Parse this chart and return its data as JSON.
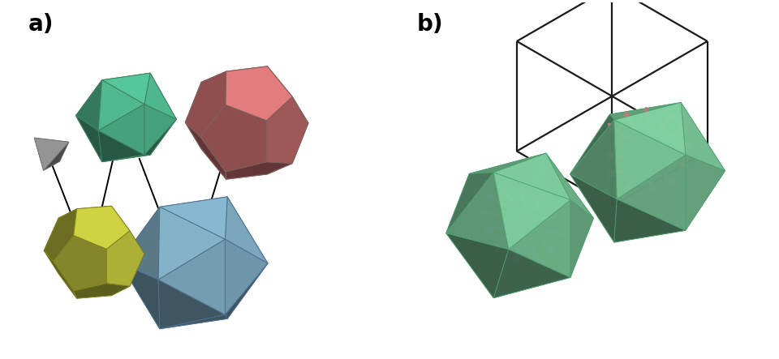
{
  "fig_width": 9.6,
  "fig_height": 4.43,
  "dpi": 100,
  "background_color": "#ffffff",
  "label_a": "a)",
  "label_b": "b)",
  "label_fontsize": 20,
  "colors": {
    "tetrahedron": "#a0a0a0",
    "icosahedron_green": "#55c49a",
    "dodecahedron_red": "#d97878",
    "dodecahedron_yellow": "#ccd040",
    "icosahedron_blue": "#88b8d0",
    "icosahedron_b_green": "#80d0a0",
    "arrow_blue": "#7080b8",
    "arrow_red": "#c07878",
    "box_color": "#1a1a1a"
  }
}
